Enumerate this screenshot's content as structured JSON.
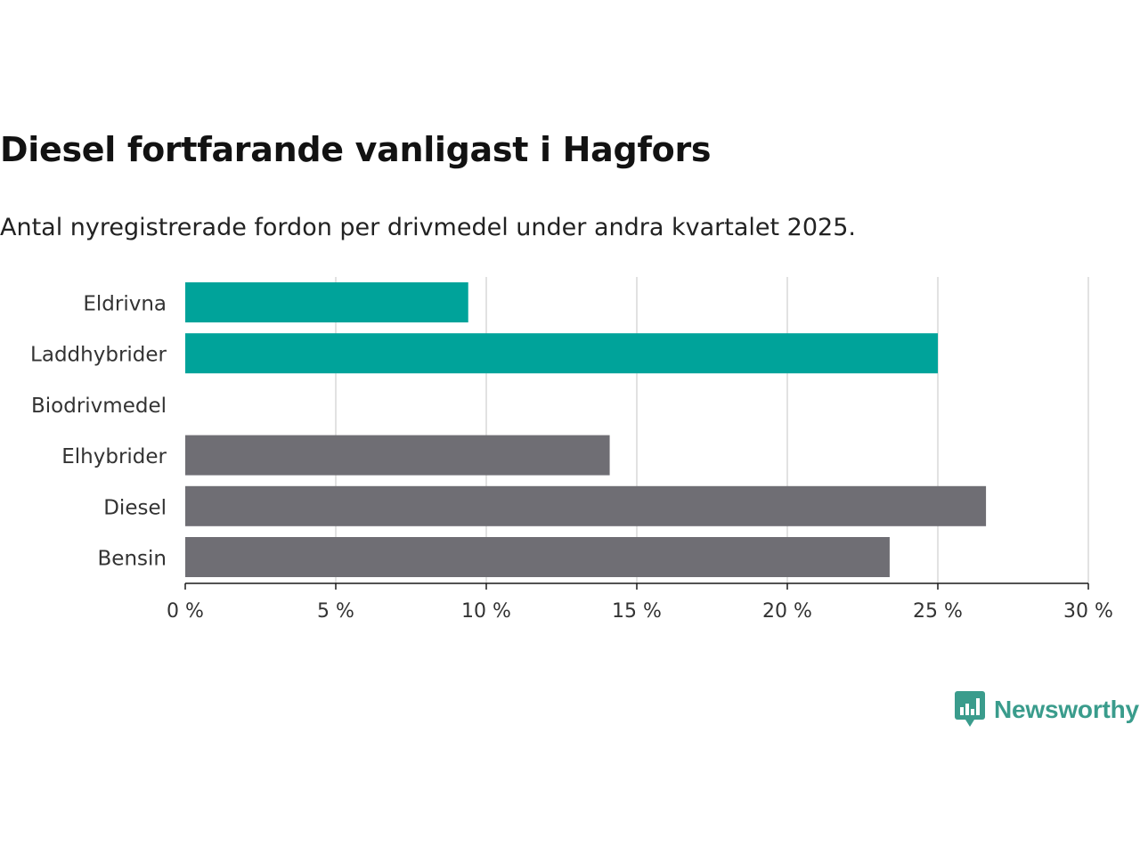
{
  "chart_data": {
    "type": "bar",
    "orientation": "horizontal",
    "title": "Diesel fortfarande vanligast i Hagfors",
    "subtitle": "Antal nyregistrerade fordon per drivmedel under andra kvartalet 2025.",
    "categories": [
      "Eldrivna",
      "Laddhybrider",
      "Biodrivmedel",
      "Elhybrider",
      "Diesel",
      "Bensin"
    ],
    "values": [
      9.4,
      25.0,
      0,
      14.1,
      26.6,
      23.4
    ],
    "bar_colors": [
      "#00a39a",
      "#00a39a",
      "#00a39a",
      "#6f6e74",
      "#6f6e74",
      "#6f6e74"
    ],
    "xlim": [
      0,
      30
    ],
    "xticks": [
      0,
      5,
      10,
      15,
      20,
      25,
      30
    ],
    "xtick_labels": [
      "0 %",
      "5 %",
      "10 %",
      "15 %",
      "20 %",
      "25 %",
      "30 %"
    ],
    "grid": true,
    "xlabel": "",
    "ylabel": ""
  },
  "brand": {
    "name": "Newsworthy",
    "color": "#3a9c8c"
  }
}
